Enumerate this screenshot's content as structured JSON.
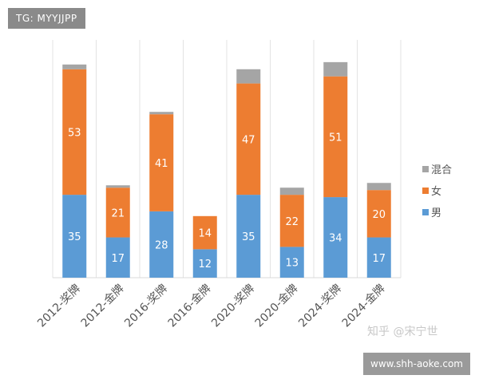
{
  "tag": "TG: MYYJJPP",
  "watermark": "知乎 @宋宁世",
  "site": "www.shh-aoke.com",
  "chart_data": {
    "type": "bar",
    "stacked": true,
    "title": "",
    "xlabel": "",
    "ylabel": "",
    "ylim": [
      0,
      95
    ],
    "grid": "vertical separators",
    "legend": "right",
    "categories": [
      "2012-奖牌",
      "2012-金牌",
      "2016-奖牌",
      "2016-金牌",
      "2020-奖牌",
      "2020-金牌",
      "2024-奖牌",
      "2024-金牌"
    ],
    "series": [
      {
        "name": "男",
        "color": "#5b9bd5",
        "values": [
          35,
          17,
          28,
          12,
          35,
          13,
          34,
          17
        ],
        "labels": true
      },
      {
        "name": "女",
        "color": "#ed7d31",
        "values": [
          53,
          21,
          41,
          14,
          47,
          22,
          51,
          20
        ],
        "labels": true
      },
      {
        "name": "混合",
        "color": "#a5a5a5",
        "values": [
          2,
          1,
          1,
          0,
          6,
          3,
          6,
          3
        ],
        "labels": false
      }
    ]
  }
}
